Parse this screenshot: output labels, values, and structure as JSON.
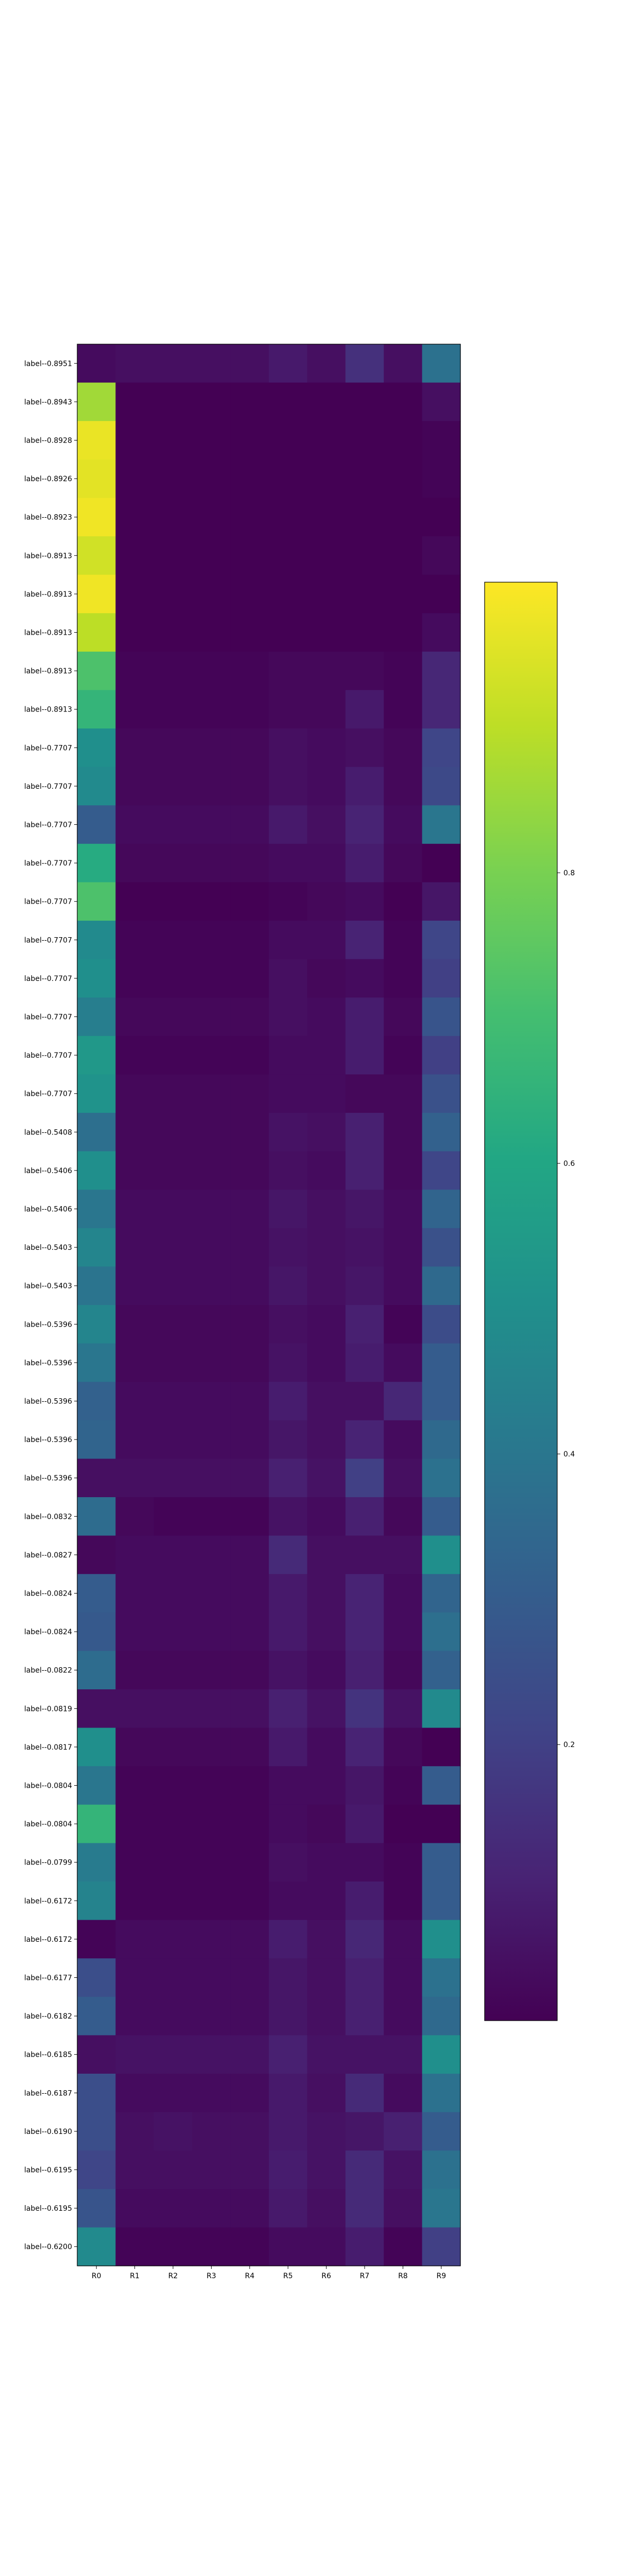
{
  "chart_data": {
    "type": "heatmap",
    "title": "",
    "xlabel": "",
    "ylabel": "",
    "columns": [
      "R0",
      "R1",
      "R2",
      "R3",
      "R4",
      "R5",
      "R6",
      "R7",
      "R8",
      "R9"
    ],
    "rows": [
      "label--0.8951",
      "label--0.8943",
      "label--0.8928",
      "label--0.8926",
      "label--0.8923",
      "label--0.8913",
      "label--0.8913",
      "label--0.8913",
      "label--0.8913",
      "label--0.8913",
      "label--0.7707",
      "label--0.7707",
      "label--0.7707",
      "label--0.7707",
      "label--0.7707",
      "label--0.7707",
      "label--0.7707",
      "label--0.7707",
      "label--0.7707",
      "label--0.7707",
      "label--0.5408",
      "label--0.5406",
      "label--0.5406",
      "label--0.5403",
      "label--0.5403",
      "label--0.5396",
      "label--0.5396",
      "label--0.5396",
      "label--0.5396",
      "label--0.5396",
      "label--0.0832",
      "label--0.0827",
      "label--0.0824",
      "label--0.0824",
      "label--0.0822",
      "label--0.0819",
      "label--0.0817",
      "label--0.0804",
      "label--0.0804",
      "label--0.0799",
      "label--0.6172",
      "label--0.6172",
      "label--0.6177",
      "label--0.6182",
      "label--0.6185",
      "label--0.6187",
      "label--0.6190",
      "label--0.6195",
      "label--0.6195",
      "label--0.6200"
    ],
    "values": [
      [
        0.04,
        0.05,
        0.05,
        0.05,
        0.05,
        0.08,
        0.05,
        0.15,
        0.05,
        0.38
      ],
      [
        0.86,
        0.01,
        0.01,
        0.01,
        0.01,
        0.01,
        0.01,
        0.01,
        0.01,
        0.05
      ],
      [
        0.97,
        0.01,
        0.01,
        0.01,
        0.01,
        0.01,
        0.01,
        0.01,
        0.01,
        0.02
      ],
      [
        0.96,
        0.01,
        0.01,
        0.01,
        0.01,
        0.01,
        0.01,
        0.01,
        0.01,
        0.02
      ],
      [
        0.98,
        0.01,
        0.01,
        0.01,
        0.01,
        0.01,
        0.01,
        0.01,
        0.01,
        0.01
      ],
      [
        0.93,
        0.01,
        0.01,
        0.01,
        0.01,
        0.01,
        0.01,
        0.01,
        0.01,
        0.03
      ],
      [
        0.98,
        0.01,
        0.01,
        0.01,
        0.01,
        0.01,
        0.01,
        0.01,
        0.01,
        0.01
      ],
      [
        0.9,
        0.01,
        0.01,
        0.01,
        0.01,
        0.01,
        0.01,
        0.01,
        0.01,
        0.04
      ],
      [
        0.72,
        0.02,
        0.02,
        0.02,
        0.02,
        0.03,
        0.03,
        0.03,
        0.02,
        0.12
      ],
      [
        0.66,
        0.02,
        0.02,
        0.02,
        0.02,
        0.03,
        0.03,
        0.08,
        0.02,
        0.12
      ],
      [
        0.5,
        0.03,
        0.03,
        0.03,
        0.03,
        0.05,
        0.04,
        0.05,
        0.03,
        0.22
      ],
      [
        0.48,
        0.03,
        0.03,
        0.03,
        0.03,
        0.05,
        0.04,
        0.09,
        0.03,
        0.23
      ],
      [
        0.3,
        0.04,
        0.04,
        0.04,
        0.04,
        0.08,
        0.05,
        0.11,
        0.04,
        0.4
      ],
      [
        0.62,
        0.03,
        0.03,
        0.03,
        0.03,
        0.04,
        0.04,
        0.09,
        0.03,
        0.01
      ],
      [
        0.72,
        0.01,
        0.01,
        0.01,
        0.01,
        0.02,
        0.03,
        0.04,
        0.01,
        0.07
      ],
      [
        0.48,
        0.02,
        0.02,
        0.02,
        0.02,
        0.04,
        0.04,
        0.11,
        0.02,
        0.22
      ],
      [
        0.5,
        0.02,
        0.02,
        0.02,
        0.02,
        0.05,
        0.03,
        0.04,
        0.02,
        0.2
      ],
      [
        0.43,
        0.03,
        0.03,
        0.03,
        0.03,
        0.05,
        0.04,
        0.09,
        0.03,
        0.27
      ],
      [
        0.54,
        0.02,
        0.02,
        0.02,
        0.02,
        0.04,
        0.04,
        0.09,
        0.02,
        0.2
      ],
      [
        0.52,
        0.03,
        0.03,
        0.03,
        0.03,
        0.04,
        0.04,
        0.03,
        0.03,
        0.26
      ],
      [
        0.37,
        0.03,
        0.03,
        0.03,
        0.03,
        0.06,
        0.05,
        0.1,
        0.03,
        0.32
      ],
      [
        0.5,
        0.03,
        0.03,
        0.03,
        0.03,
        0.05,
        0.04,
        0.1,
        0.03,
        0.22
      ],
      [
        0.4,
        0.04,
        0.04,
        0.04,
        0.04,
        0.07,
        0.05,
        0.07,
        0.04,
        0.33
      ],
      [
        0.46,
        0.04,
        0.04,
        0.04,
        0.04,
        0.06,
        0.05,
        0.06,
        0.04,
        0.26
      ],
      [
        0.39,
        0.04,
        0.04,
        0.04,
        0.04,
        0.07,
        0.05,
        0.07,
        0.04,
        0.35
      ],
      [
        0.46,
        0.03,
        0.03,
        0.03,
        0.03,
        0.05,
        0.04,
        0.1,
        0.02,
        0.24
      ],
      [
        0.4,
        0.03,
        0.03,
        0.03,
        0.03,
        0.06,
        0.04,
        0.09,
        0.04,
        0.3
      ],
      [
        0.32,
        0.04,
        0.04,
        0.04,
        0.04,
        0.09,
        0.05,
        0.05,
        0.12,
        0.3
      ],
      [
        0.33,
        0.04,
        0.04,
        0.04,
        0.04,
        0.07,
        0.05,
        0.11,
        0.04,
        0.35
      ],
      [
        0.05,
        0.05,
        0.05,
        0.05,
        0.05,
        0.1,
        0.06,
        0.2,
        0.05,
        0.38
      ],
      [
        0.36,
        0.03,
        0.02,
        0.02,
        0.02,
        0.06,
        0.04,
        0.1,
        0.03,
        0.3
      ],
      [
        0.03,
        0.04,
        0.04,
        0.04,
        0.04,
        0.13,
        0.05,
        0.05,
        0.05,
        0.5
      ],
      [
        0.3,
        0.04,
        0.04,
        0.04,
        0.04,
        0.08,
        0.05,
        0.11,
        0.04,
        0.33
      ],
      [
        0.29,
        0.04,
        0.04,
        0.04,
        0.04,
        0.08,
        0.05,
        0.11,
        0.04,
        0.37
      ],
      [
        0.36,
        0.03,
        0.03,
        0.03,
        0.03,
        0.06,
        0.04,
        0.1,
        0.03,
        0.32
      ],
      [
        0.05,
        0.05,
        0.05,
        0.05,
        0.05,
        0.1,
        0.06,
        0.16,
        0.06,
        0.48
      ],
      [
        0.5,
        0.03,
        0.03,
        0.03,
        0.03,
        0.08,
        0.04,
        0.11,
        0.03,
        0.01
      ],
      [
        0.4,
        0.02,
        0.02,
        0.02,
        0.02,
        0.04,
        0.04,
        0.07,
        0.02,
        0.3
      ],
      [
        0.66,
        0.02,
        0.02,
        0.02,
        0.02,
        0.04,
        0.03,
        0.08,
        0.01,
        0.01
      ],
      [
        0.42,
        0.02,
        0.02,
        0.02,
        0.02,
        0.05,
        0.04,
        0.04,
        0.02,
        0.3
      ],
      [
        0.45,
        0.02,
        0.02,
        0.02,
        0.02,
        0.04,
        0.04,
        0.09,
        0.02,
        0.3
      ],
      [
        0.02,
        0.04,
        0.04,
        0.04,
        0.04,
        0.09,
        0.05,
        0.12,
        0.04,
        0.5
      ],
      [
        0.25,
        0.04,
        0.04,
        0.04,
        0.04,
        0.07,
        0.05,
        0.1,
        0.04,
        0.38
      ],
      [
        0.3,
        0.04,
        0.04,
        0.04,
        0.04,
        0.07,
        0.05,
        0.1,
        0.04,
        0.35
      ],
      [
        0.05,
        0.06,
        0.06,
        0.06,
        0.06,
        0.1,
        0.06,
        0.06,
        0.06,
        0.5
      ],
      [
        0.25,
        0.04,
        0.04,
        0.04,
        0.04,
        0.08,
        0.05,
        0.13,
        0.04,
        0.38
      ],
      [
        0.25,
        0.05,
        0.06,
        0.05,
        0.05,
        0.08,
        0.06,
        0.07,
        0.1,
        0.3
      ],
      [
        0.22,
        0.05,
        0.05,
        0.05,
        0.05,
        0.09,
        0.06,
        0.13,
        0.06,
        0.38
      ],
      [
        0.27,
        0.04,
        0.04,
        0.04,
        0.04,
        0.08,
        0.05,
        0.13,
        0.05,
        0.4
      ],
      [
        0.48,
        0.02,
        0.02,
        0.02,
        0.02,
        0.04,
        0.04,
        0.09,
        0.02,
        0.2
      ]
    ],
    "colorbar": {
      "colormap": "viridis",
      "range": [
        0.01,
        1.0
      ],
      "ticks": [
        0.2,
        0.4,
        0.6,
        0.8
      ],
      "tick_labels": [
        "0.2",
        "0.4",
        "0.6",
        "0.8"
      ]
    },
    "grid": false
  }
}
